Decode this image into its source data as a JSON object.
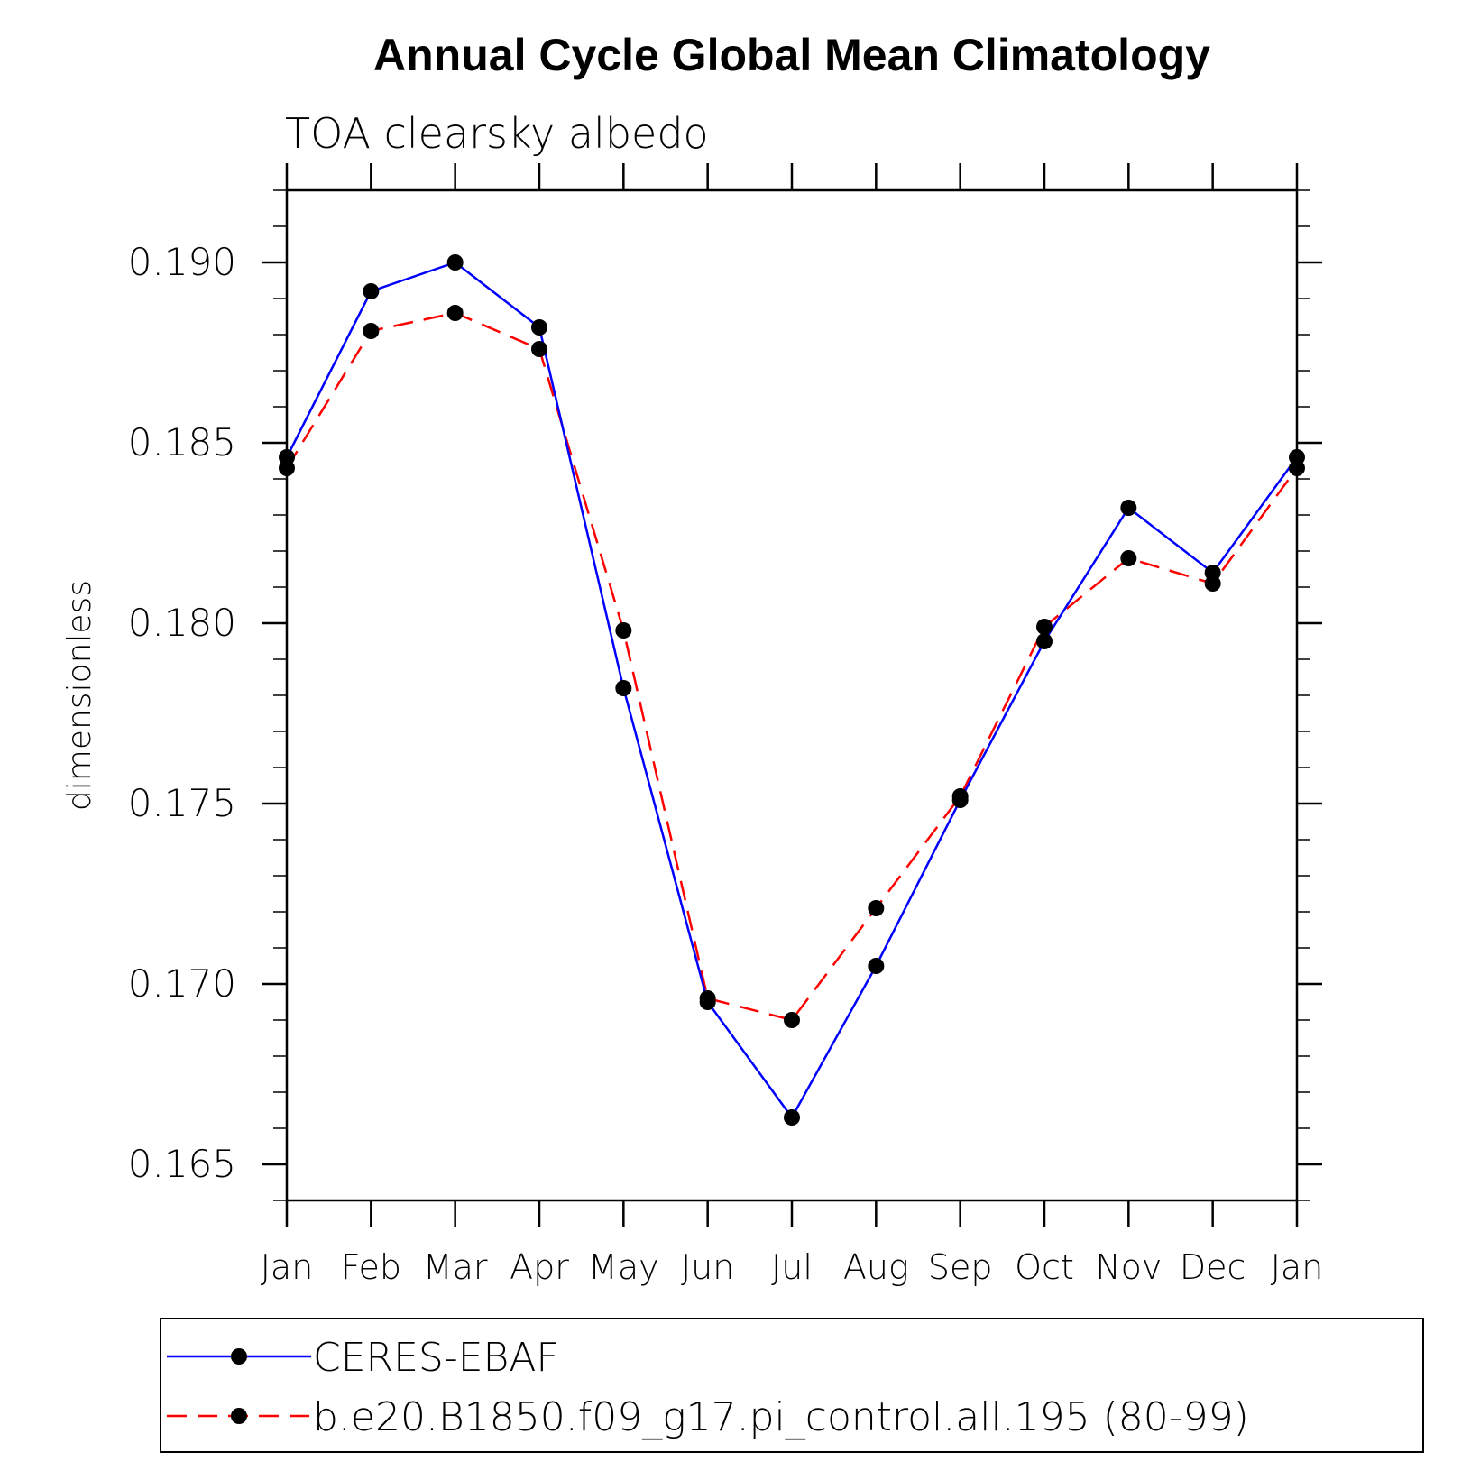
{
  "chart_data": {
    "type": "line",
    "title": "Annual Cycle Global Mean Climatology",
    "subtitle": "TOA clearsky albedo",
    "xlabel": "",
    "ylabel": "dimensionless",
    "categories": [
      "Jan",
      "Feb",
      "Mar",
      "Apr",
      "May",
      "Jun",
      "Jul",
      "Aug",
      "Sep",
      "Oct",
      "Nov",
      "Dec",
      "Jan"
    ],
    "ylim": [
      0.164,
      0.192
    ],
    "yticks": [
      0.165,
      0.17,
      0.175,
      0.18,
      0.185,
      0.19
    ],
    "ytick_labels": [
      "0.165",
      "0.170",
      "0.175",
      "0.180",
      "0.185",
      "0.190"
    ],
    "yminor_step": 0.001,
    "grid": false,
    "legend_position": "bottom",
    "series": [
      {
        "name": "CERES-EBAF",
        "color": "#0000ff",
        "dash": "solid",
        "values": [
          0.1846,
          0.1892,
          0.19,
          0.1882,
          0.1782,
          0.1695,
          0.1663,
          0.1705,
          0.1751,
          0.1795,
          0.1832,
          0.1814,
          0.1846
        ]
      },
      {
        "name": "b.e20.B1850.f09_g17.pi_control.all.195 (80-99)",
        "color": "#ff0000",
        "dash": "dashed",
        "values": [
          0.1843,
          0.1881,
          0.1886,
          0.1876,
          0.1798,
          0.1696,
          0.169,
          0.1721,
          0.1752,
          0.1799,
          0.1818,
          0.1811,
          0.1843
        ]
      }
    ]
  }
}
